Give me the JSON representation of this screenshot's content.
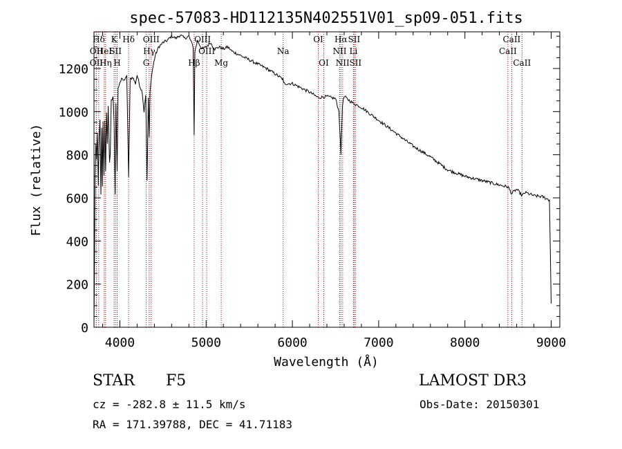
{
  "chart_data": {
    "type": "line",
    "title": "spec-57083-HD112135N402551V01_sp09-051.fits",
    "xlabel": "Wavelength (Å)",
    "ylabel": "Flux (relative)",
    "xlim": [
      3700,
      9100
    ],
    "ylim": [
      0,
      1370
    ],
    "xticks": [
      4000,
      5000,
      6000,
      7000,
      8000,
      9000
    ],
    "yticks": [
      0,
      200,
      400,
      600,
      800,
      1000,
      1200
    ],
    "series": [
      {
        "name": "spectrum",
        "x": [
          3700,
          3705,
          3712,
          3722,
          3730,
          3740,
          3750,
          3760,
          3770,
          3780,
          3790,
          3798,
          3805,
          3815,
          3825,
          3835,
          3845,
          3855,
          3865,
          3880,
          3889,
          3900,
          3920,
          3933,
          3945,
          3955,
          3968,
          3980,
          4000,
          4020,
          4050,
          4080,
          4101,
          4120,
          4150,
          4180,
          4200,
          4230,
          4260,
          4280,
          4300,
          4315,
          4330,
          4340,
          4350,
          4362,
          4380,
          4410,
          4450,
          4500,
          4550,
          4600,
          4650,
          4700,
          4750,
          4800,
          4830,
          4850,
          4861,
          4870,
          4900,
          4950,
          5000,
          5050,
          5100,
          5150,
          5200,
          5250,
          5300,
          5400,
          5500,
          5600,
          5700,
          5800,
          5890,
          5900,
          6000,
          6100,
          6200,
          6300,
          6400,
          6500,
          6540,
          6563,
          6580,
          6600,
          6700,
          6800,
          6900,
          7000,
          7200,
          7400,
          7600,
          7800,
          8000,
          8200,
          8400,
          8500,
          8542,
          8600,
          8662,
          8700,
          8800,
          8900,
          8980,
          8990,
          9000
        ],
        "values": [
          20,
          240,
          700,
          850,
          780,
          900,
          650,
          880,
          960,
          620,
          920,
          650,
          950,
          700,
          960,
          720,
          1000,
          850,
          1030,
          760,
          800,
          1050,
          1070,
          950,
          620,
          1040,
          720,
          1110,
          1130,
          1160,
          1140,
          1170,
          700,
          1150,
          1160,
          1130,
          1170,
          1120,
          1090,
          1000,
          1080,
          680,
          1060,
          880,
          1090,
          1150,
          1200,
          1260,
          1300,
          1320,
          1330,
          1350,
          1340,
          1355,
          1340,
          1350,
          1320,
          1300,
          890,
          1280,
          1330,
          1290,
          1300,
          1320,
          1290,
          1300,
          1290,
          1300,
          1280,
          1260,
          1240,
          1220,
          1200,
          1175,
          1150,
          1130,
          1130,
          1110,
          1090,
          1065,
          1070,
          1060,
          1000,
          800,
          1030,
          1070,
          1040,
          1020,
          990,
          960,
          900,
          840,
          790,
          730,
          700,
          680,
          660,
          650,
          620,
          640,
          610,
          625,
          610,
          605,
          590,
          350,
          110
        ]
      }
    ],
    "line_annotations": [
      {
        "label": "Hδ",
        "wavelength": 3755,
        "row": 1
      },
      {
        "label": "OII",
        "wavelength": 3727,
        "row": 2
      },
      {
        "label": "HeI",
        "wavelength": 3819,
        "row": 2
      },
      {
        "label": "OII",
        "wavelength": 3727,
        "row": 3
      },
      {
        "label": "Hη",
        "wavelength": 3835,
        "row": 3
      },
      {
        "label": "K",
        "wavelength": 3933,
        "row": 1
      },
      {
        "label": "SII",
        "wavelength": 3949,
        "row": 2
      },
      {
        "label": "H",
        "wavelength": 3968,
        "row": 3
      },
      {
        "label": "Hδ",
        "wavelength": 4101,
        "row": 1
      },
      {
        "label": "OIII",
        "wavelength": 4363,
        "row": 1
      },
      {
        "label": "Hγ",
        "wavelength": 4340,
        "row": 2
      },
      {
        "label": "G",
        "wavelength": 4305,
        "row": 3
      },
      {
        "label": "OIII",
        "wavelength": 4959,
        "row": 1
      },
      {
        "label": "OIII",
        "wavelength": 5007,
        "row": 2
      },
      {
        "label": "Hβ",
        "wavelength": 4861,
        "row": 3
      },
      {
        "label": "Mg",
        "wavelength": 5175,
        "row": 3
      },
      {
        "label": "Na",
        "wavelength": 5893,
        "row": 2
      },
      {
        "label": "OI",
        "wavelength": 6300,
        "row": 1
      },
      {
        "label": "OI",
        "wavelength": 6363,
        "row": 3
      },
      {
        "label": "Hα",
        "wavelength": 6563,
        "row": 1
      },
      {
        "label": "NII",
        "wavelength": 6548,
        "row": 2
      },
      {
        "label": "NII",
        "wavelength": 6583,
        "row": 3
      },
      {
        "label": "SII",
        "wavelength": 6716,
        "row": 1
      },
      {
        "label": "Li",
        "wavelength": 6708,
        "row": 2
      },
      {
        "label": "SII",
        "wavelength": 6731,
        "row": 3
      },
      {
        "label": "CaII",
        "wavelength": 8542,
        "row": 1
      },
      {
        "label": "CaII",
        "wavelength": 8498,
        "row": 2
      },
      {
        "label": "CaII",
        "wavelength": 8662,
        "row": 3
      }
    ]
  },
  "info": {
    "object_class": "STAR",
    "subclass": "F5",
    "release": "LAMOST DR3",
    "cz": "cz = -282.8 ± 11.5 km/s",
    "obs_date": "Obs-Date: 20150301",
    "radec": "RA = 171.39788, DEC =  41.71183"
  },
  "colors": {
    "line_markers": "#b00000",
    "spectrum": "#000000"
  }
}
